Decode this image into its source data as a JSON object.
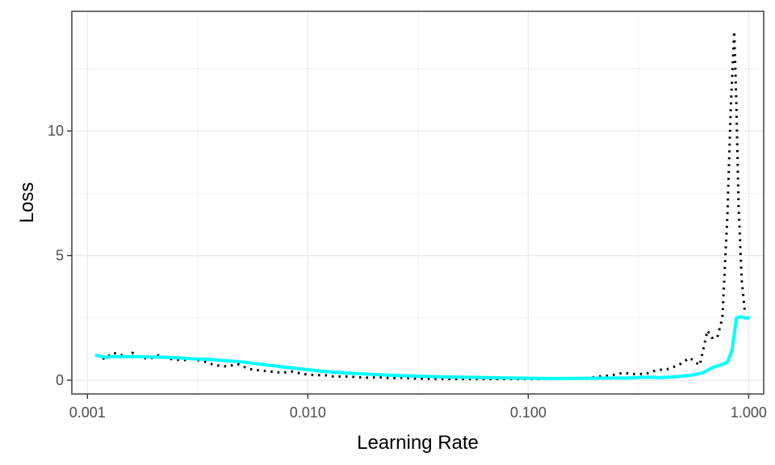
{
  "chart_data": {
    "type": "line",
    "title": "",
    "xlabel": "Learning Rate",
    "ylabel": "Loss",
    "x_scale": "log10",
    "xlim": [
      0.00085,
      1.17
    ],
    "ylim": [
      -0.55,
      14.8
    ],
    "x_ticks": [
      {
        "value": 0.001,
        "label": "0.001"
      },
      {
        "value": 0.01,
        "label": "0.010"
      },
      {
        "value": 0.1,
        "label": "0.100"
      },
      {
        "value": 1.0,
        "label": "1.000"
      }
    ],
    "y_ticks": [
      {
        "value": 0,
        "label": "0"
      },
      {
        "value": 5,
        "label": "5"
      },
      {
        "value": 10,
        "label": "10"
      }
    ],
    "grid": true,
    "legend": "none",
    "series": [
      {
        "style": "dotted",
        "color": "#000000",
        "x": [
          0.0011,
          0.0012,
          0.0013,
          0.0014,
          0.0015,
          0.0016,
          0.0017,
          0.0019,
          0.0021,
          0.0024,
          0.0027,
          0.003,
          0.0034,
          0.0038,
          0.0043,
          0.0048,
          0.0054,
          0.006,
          0.0068,
          0.0076,
          0.0085,
          0.0095,
          0.011,
          0.012,
          0.013,
          0.015,
          0.017,
          0.019,
          0.021,
          0.024,
          0.027,
          0.03,
          0.034,
          0.038,
          0.043,
          0.048,
          0.054,
          0.06,
          0.068,
          0.076,
          0.085,
          0.095,
          0.11,
          0.12,
          0.13,
          0.15,
          0.17,
          0.19,
          0.21,
          0.24,
          0.27,
          0.3,
          0.34,
          0.38,
          0.43,
          0.48,
          0.54,
          0.6,
          0.65,
          0.68,
          0.72,
          0.76,
          0.8,
          0.83,
          0.86,
          0.88,
          0.9,
          0.93,
          0.96,
          1.0
        ],
        "y": [
          1.0,
          0.85,
          1.1,
          1.05,
          0.9,
          1.1,
          0.95,
          0.85,
          1.0,
          0.85,
          0.8,
          0.85,
          0.75,
          0.6,
          0.55,
          0.65,
          0.45,
          0.4,
          0.35,
          0.3,
          0.35,
          0.25,
          0.2,
          0.2,
          0.15,
          0.15,
          0.12,
          0.1,
          0.12,
          0.08,
          0.1,
          0.07,
          0.06,
          0.06,
          0.05,
          0.05,
          0.05,
          0.05,
          0.05,
          0.05,
          0.05,
          0.05,
          0.05,
          0.06,
          0.06,
          0.08,
          0.08,
          0.1,
          0.15,
          0.2,
          0.3,
          0.25,
          0.25,
          0.4,
          0.45,
          0.6,
          0.9,
          0.6,
          2.0,
          1.7,
          1.7,
          2.5,
          6.5,
          11.0,
          14.0,
          11.0,
          7.0,
          4.0,
          2.8,
          2.8
        ]
      },
      {
        "style": "solid",
        "color": "#00ffff",
        "x": [
          0.0011,
          0.0012,
          0.0013,
          0.0015,
          0.0017,
          0.002,
          0.0023,
          0.0026,
          0.003,
          0.0035,
          0.004,
          0.005,
          0.006,
          0.007,
          0.008,
          0.009,
          0.01,
          0.012,
          0.015,
          0.02,
          0.025,
          0.03,
          0.04,
          0.05,
          0.07,
          0.1,
          0.13,
          0.2,
          0.28,
          0.35,
          0.4,
          0.48,
          0.55,
          0.62,
          0.68,
          0.75,
          0.8,
          0.84,
          0.88,
          0.92,
          0.96,
          1.0
        ],
        "y": [
          1.0,
          0.92,
          0.95,
          0.95,
          0.95,
          0.93,
          0.92,
          0.9,
          0.86,
          0.84,
          0.8,
          0.74,
          0.65,
          0.58,
          0.52,
          0.47,
          0.42,
          0.35,
          0.29,
          0.23,
          0.19,
          0.17,
          0.14,
          0.12,
          0.1,
          0.08,
          0.07,
          0.08,
          0.09,
          0.12,
          0.1,
          0.15,
          0.2,
          0.3,
          0.5,
          0.62,
          0.72,
          1.2,
          2.5,
          2.55,
          2.5,
          2.5
        ]
      }
    ]
  }
}
